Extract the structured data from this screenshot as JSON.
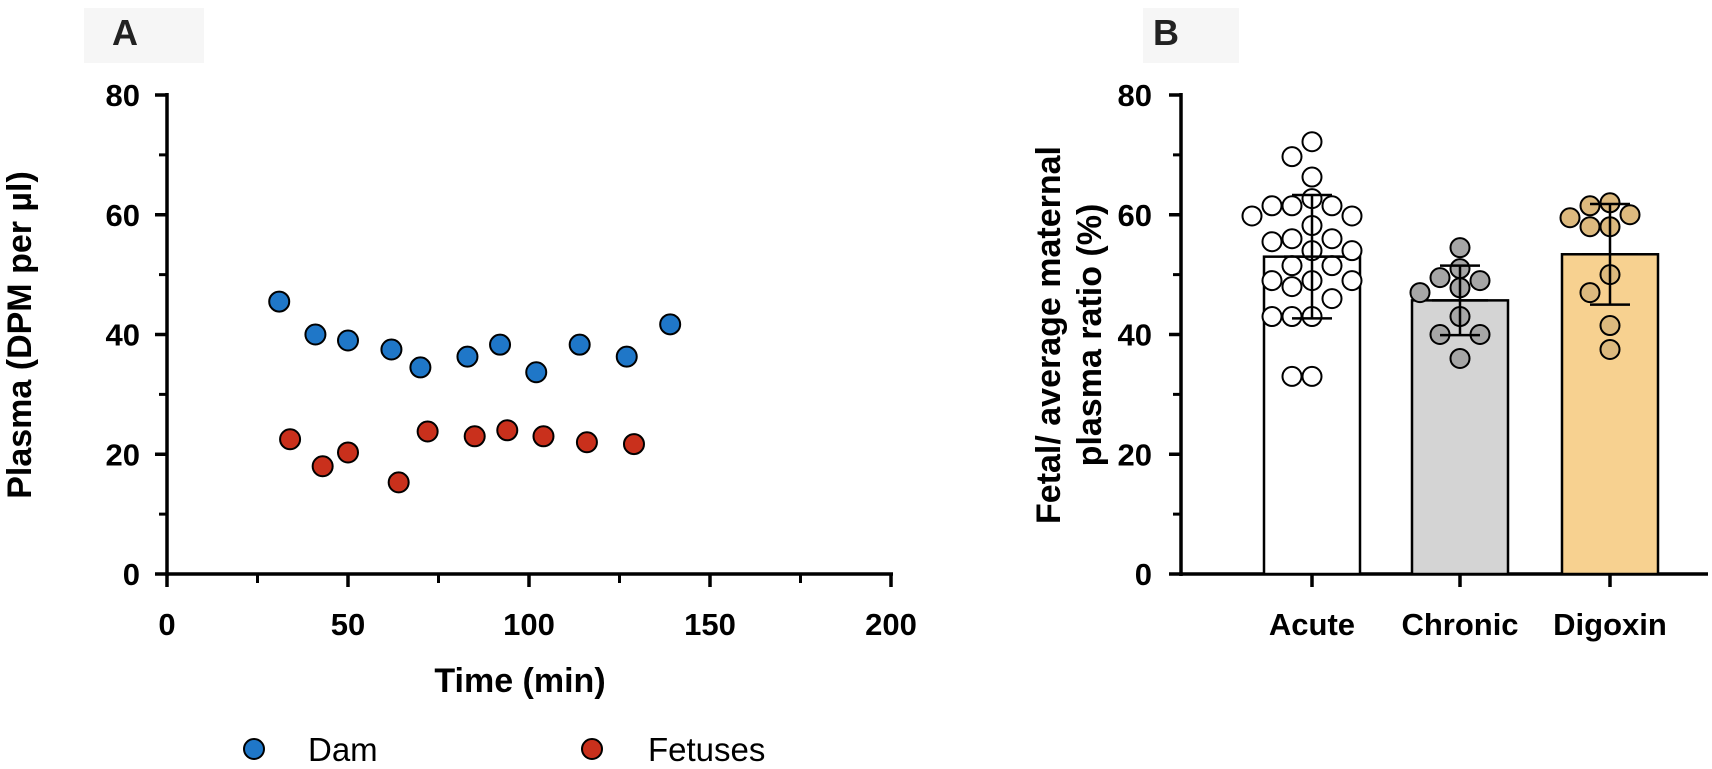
{
  "panels": {
    "a_label": "A",
    "b_label": "B"
  },
  "legend": {
    "items": [
      {
        "label": "Dam",
        "color": "#1f77c8"
      },
      {
        "label": "Fetuses",
        "color": "#c9301c"
      }
    ]
  },
  "chart_data": [
    {
      "type": "scatter",
      "panel": "A",
      "xlabel": "Time (min)",
      "ylabel": "Plasma (DPM per µl)",
      "xlim": [
        0,
        200
      ],
      "ylim": [
        0,
        80
      ],
      "x_ticks": [
        "0",
        "50",
        "100",
        "150",
        "200"
      ],
      "y_ticks": [
        "0",
        "20",
        "40",
        "60",
        "80"
      ],
      "legend_position": "bottom",
      "grid": false,
      "series": [
        {
          "name": "Dam",
          "color": "#1f77c8",
          "points": [
            {
              "x": 31,
              "y": 45.5
            },
            {
              "x": 41,
              "y": 40
            },
            {
              "x": 50,
              "y": 39
            },
            {
              "x": 62,
              "y": 37.5
            },
            {
              "x": 70,
              "y": 34.5
            },
            {
              "x": 83,
              "y": 36.3
            },
            {
              "x": 92,
              "y": 38.3
            },
            {
              "x": 102,
              "y": 33.7
            },
            {
              "x": 114,
              "y": 38.3
            },
            {
              "x": 127,
              "y": 36.3
            },
            {
              "x": 139,
              "y": 41.7
            }
          ]
        },
        {
          "name": "Fetuses",
          "color": "#c9301c",
          "points": [
            {
              "x": 34,
              "y": 22.5
            },
            {
              "x": 43,
              "y": 18
            },
            {
              "x": 50,
              "y": 20.3
            },
            {
              "x": 64,
              "y": 15.3
            },
            {
              "x": 72,
              "y": 23.8
            },
            {
              "x": 85,
              "y": 23
            },
            {
              "x": 94,
              "y": 24
            },
            {
              "x": 104,
              "y": 23
            },
            {
              "x": 116,
              "y": 22
            },
            {
              "x": 129,
              "y": 21.7
            }
          ]
        }
      ]
    },
    {
      "type": "bar",
      "panel": "B",
      "ylabel_lines": [
        "Fetal/ average maternal",
        "plasma ratio (%)"
      ],
      "ylim": [
        0,
        80
      ],
      "y_ticks": [
        "0",
        "20",
        "40",
        "60",
        "80"
      ],
      "categories": [
        "Acute",
        "Chronic",
        "Digoxin"
      ],
      "bars": [
        {
          "category": "Acute",
          "mean": 53,
          "sd": 10.3,
          "fill": "#ffffff",
          "point_fill": "#ffffff",
          "points": [
            72.2,
            69.7,
            66.3,
            62.7,
            61.5,
            61.5,
            61.5,
            59.8,
            59.8,
            58.2,
            56,
            56,
            55.5,
            54,
            54,
            51.5,
            51.5,
            49,
            49,
            49,
            48,
            46,
            43,
            43,
            43,
            33,
            33
          ]
        },
        {
          "category": "Chronic",
          "mean": 45.7,
          "sd": 5.8,
          "fill": "#d4d4d4",
          "point_fill": "#a6a6a6",
          "points": [
            54.5,
            51,
            49.5,
            49,
            47.8,
            47,
            43,
            40,
            40,
            36
          ]
        },
        {
          "category": "Digoxin",
          "mean": 53.4,
          "sd": 8.4,
          "fill": "#f7d190",
          "point_fill": "#dcb97e",
          "points": [
            62,
            61.5,
            60,
            59.5,
            58,
            58,
            50,
            47,
            41.5,
            37.5
          ]
        }
      ]
    }
  ]
}
